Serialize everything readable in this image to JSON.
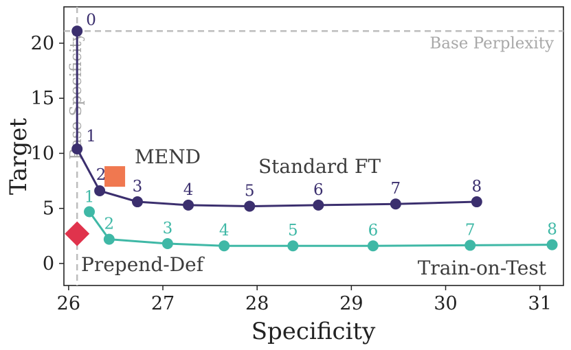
{
  "chart_data": {
    "type": "line",
    "title": "",
    "xlabel": "Specificity",
    "ylabel": "Target",
    "xlim": [
      25.95,
      31.25
    ],
    "ylim": [
      -2.0,
      23.3
    ],
    "xticks": [
      26,
      27,
      28,
      29,
      30,
      31
    ],
    "yticks": [
      0,
      5,
      10,
      15,
      20
    ],
    "grid": false,
    "reference_lines": {
      "horizontal": {
        "label": "Base Perplexity",
        "value": 21.1
      },
      "vertical": {
        "label": "Base Specificity",
        "value": 26.09
      }
    },
    "series": [
      {
        "name": "Standard FT",
        "color": "#3b2f6e",
        "point_labels": [
          "0",
          "1",
          "2",
          "3",
          "4",
          "5",
          "6",
          "7",
          "8"
        ],
        "x": [
          26.09,
          26.09,
          26.33,
          26.73,
          27.27,
          27.92,
          28.65,
          29.47,
          30.33
        ],
        "y": [
          21.1,
          10.4,
          6.6,
          5.6,
          5.3,
          5.2,
          5.3,
          5.4,
          5.6
        ]
      },
      {
        "name": "Train-on-Test",
        "color": "#3fb8a6",
        "point_labels": [
          "1",
          "2",
          "3",
          "4",
          "5",
          "6",
          "7",
          "8"
        ],
        "x": [
          26.22,
          26.43,
          27.05,
          27.65,
          28.38,
          29.23,
          30.26,
          31.13
        ],
        "y": [
          4.7,
          2.2,
          1.8,
          1.6,
          1.6,
          1.6,
          1.65,
          1.7
        ]
      }
    ],
    "markers": [
      {
        "name": "MEND",
        "shape": "square",
        "color": "#f07850",
        "x": 26.49,
        "y": 7.9
      },
      {
        "name": "Prepend-Def",
        "shape": "diamond",
        "color": "#e0334c",
        "x": 26.09,
        "y": 2.7
      }
    ]
  }
}
